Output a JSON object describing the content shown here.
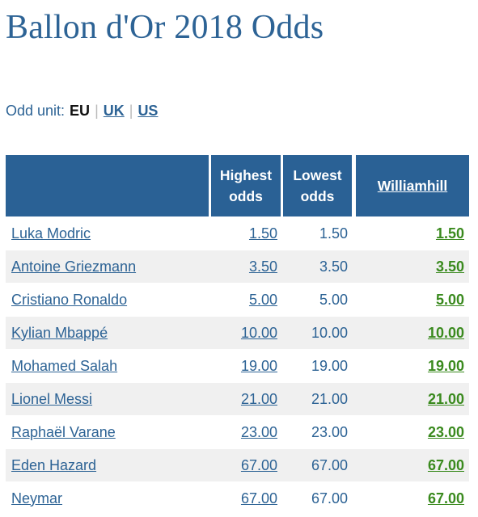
{
  "page": {
    "title": "Ballon d'Or 2018 Odds"
  },
  "odd_unit": {
    "label": "Odd unit:",
    "current": "EU",
    "options": [
      "UK",
      "US"
    ]
  },
  "table": {
    "headers": {
      "highest_line1": "Highest",
      "highest_line2": "odds",
      "lowest_line1": "Lowest",
      "lowest_line2": "odds",
      "bookmaker": "Williamhill"
    },
    "rows": [
      {
        "name": "Luka Modric",
        "highest": "1.50",
        "lowest": "1.50",
        "williamhill": "1.50"
      },
      {
        "name": "Antoine Griezmann",
        "highest": "3.50",
        "lowest": "3.50",
        "williamhill": "3.50"
      },
      {
        "name": "Cristiano Ronaldo",
        "highest": "5.00",
        "lowest": "5.00",
        "williamhill": "5.00"
      },
      {
        "name": "Kylian Mbappé",
        "highest": "10.00",
        "lowest": "10.00",
        "williamhill": "10.00"
      },
      {
        "name": "Mohamed Salah",
        "highest": "19.00",
        "lowest": "19.00",
        "williamhill": "19.00"
      },
      {
        "name": "Lionel Messi",
        "highest": "21.00",
        "lowest": "21.00",
        "williamhill": "21.00"
      },
      {
        "name": "Raphaël Varane",
        "highest": "23.00",
        "lowest": "23.00",
        "williamhill": "23.00"
      },
      {
        "name": "Eden Hazard",
        "highest": "67.00",
        "lowest": "67.00",
        "williamhill": "67.00"
      },
      {
        "name": "Neymar",
        "highest": "67.00",
        "lowest": "67.00",
        "williamhill": "67.00"
      }
    ]
  },
  "colors": {
    "title": "#2d6395",
    "header_bg": "#2a6195",
    "link": "#2d6395",
    "bookmaker_odds": "#3a8a1e",
    "row_alt": "#f0f0f0"
  }
}
